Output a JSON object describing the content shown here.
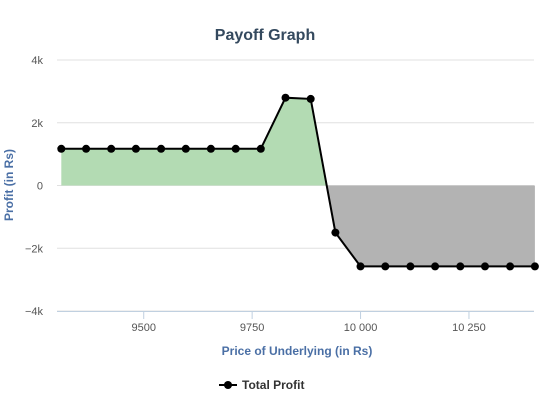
{
  "chart_data": {
    "type": "area",
    "title": "Payoff Graph",
    "xlabel": "Price of Underlying (in Rs)",
    "ylabel": "Profit (in Rs)",
    "xlim": [
      9300,
      10400
    ],
    "ylim": [
      -4000,
      4000
    ],
    "x_ticks": [
      9500,
      9750,
      10000,
      10250
    ],
    "x_tick_labels": [
      "9500",
      "9750",
      "10 000",
      "10 250"
    ],
    "y_ticks": [
      -4000,
      -2000,
      0,
      2000,
      4000
    ],
    "y_tick_labels": [
      "−4k",
      "−2k",
      "0",
      "2k",
      "4k"
    ],
    "grid": true,
    "legend_position": "bottom-center",
    "series": [
      {
        "name": "Total Profit",
        "color": "#000000",
        "positive_fill": "#b3dbb3",
        "negative_fill": "#b3b3b3",
        "x": [
          9310,
          9367,
          9425,
          9482,
          9540,
          9597,
          9655,
          9712,
          9770,
          9827,
          9885,
          9942,
          10000,
          10057,
          10115,
          10172,
          10230,
          10287,
          10345,
          10402
        ],
        "y": [
          1170,
          1170,
          1170,
          1170,
          1170,
          1170,
          1170,
          1170,
          1170,
          2800,
          2760,
          -1500,
          -2580,
          -2580,
          -2580,
          -2580,
          -2580,
          -2580,
          -2580,
          -2580
        ]
      }
    ]
  }
}
